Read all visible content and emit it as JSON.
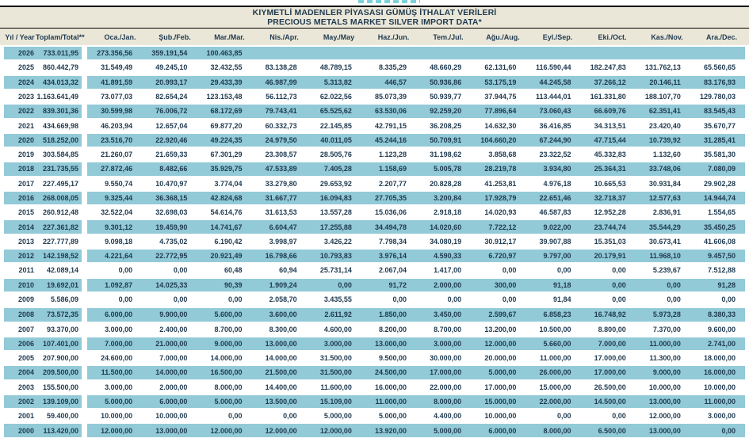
{
  "page": {
    "top_clipped_text": "",
    "title_line1": "KIYMETLİ MADENLER PİYASASI GÜMÜŞ İTHALAT VERİLERİ",
    "title_line2": "PRECIOUS METALS MARKET SILVER IMPORT DATA*"
  },
  "colors": {
    "row_stripe": "#92cad7",
    "header_bg": "#ebe7d8",
    "text": "#1f3a50",
    "accent_teal": "#4fc3cf"
  },
  "table": {
    "columns": [
      "Yıl / Year",
      "Toplam/Total**",
      "Oca./Jan.",
      "Şub./Feb.",
      "Mar./Mar.",
      "Nis./Apr.",
      "May./May",
      "Haz./Jun.",
      "Tem./Jul.",
      "Ağu./Aug.",
      "Eyl./Sep.",
      "Eki./Oct.",
      "Kas./Nov.",
      "Ara./Dec."
    ],
    "rows": [
      {
        "year": "2026",
        "total": "733.011,95",
        "months": [
          "273.356,56",
          "359.191,54",
          "100.463,85",
          "",
          "",
          "",
          "",
          "",
          "",
          "",
          "",
          ""
        ]
      },
      {
        "year": "2025",
        "total": "860.442,79",
        "months": [
          "31.549,49",
          "49.245,10",
          "32.432,55",
          "83.138,28",
          "48.789,15",
          "8.335,29",
          "48.660,29",
          "62.131,60",
          "116.590,44",
          "182.247,83",
          "131.762,13",
          "65.560,65"
        ]
      },
      {
        "year": "2024",
        "total": "434.013,32",
        "months": [
          "41.891,59",
          "20.993,17",
          "29.433,39",
          "46.987,99",
          "5.313,82",
          "446,57",
          "50.936,86",
          "53.175,19",
          "44.245,58",
          "37.266,12",
          "20.146,11",
          "83.176,93"
        ]
      },
      {
        "year": "2023",
        "total": "1.163.641,49",
        "months": [
          "73.077,03",
          "82.654,24",
          "123.153,48",
          "56.112,73",
          "62.022,56",
          "85.073,39",
          "50.939,77",
          "37.944,75",
          "113.444,01",
          "161.331,80",
          "188.107,70",
          "129.780,03"
        ]
      },
      {
        "year": "2022",
        "total": "839.301,36",
        "months": [
          "30.599,98",
          "76.006,72",
          "68.172,69",
          "79.743,41",
          "65.525,62",
          "63.530,06",
          "92.259,20",
          "77.896,64",
          "73.060,43",
          "66.609,76",
          "62.351,41",
          "83.545,43"
        ]
      },
      {
        "year": "2021",
        "total": "434.669,98",
        "months": [
          "46.203,94",
          "12.657,04",
          "69.877,20",
          "60.332,73",
          "22.145,85",
          "42.791,15",
          "36.208,25",
          "14.632,30",
          "36.416,85",
          "34.313,51",
          "23.420,40",
          "35.670,77"
        ]
      },
      {
        "year": "2020",
        "total": "518.252,00",
        "months": [
          "23.516,70",
          "22.920,46",
          "49.224,35",
          "24.979,50",
          "40.011,05",
          "45.244,16",
          "50.709,91",
          "104.660,20",
          "67.244,90",
          "47.715,44",
          "10.739,92",
          "31.285,41"
        ]
      },
      {
        "year": "2019",
        "total": "303.584,85",
        "months": [
          "21.260,07",
          "21.659,33",
          "67.301,29",
          "23.308,57",
          "28.505,76",
          "1.123,28",
          "31.198,62",
          "3.858,68",
          "23.322,52",
          "45.332,83",
          "1.132,60",
          "35.581,30"
        ]
      },
      {
        "year": "2018",
        "total": "231.735,55",
        "months": [
          "27.872,46",
          "8.482,66",
          "35.929,75",
          "47.533,89",
          "7.405,28",
          "1.158,69",
          "5.005,78",
          "28.219,78",
          "3.934,80",
          "25.364,31",
          "33.748,06",
          "7.080,09"
        ]
      },
      {
        "year": "2017",
        "total": "227.495,17",
        "months": [
          "9.550,74",
          "10.470,97",
          "3.774,04",
          "33.279,80",
          "29.653,92",
          "2.207,77",
          "20.828,28",
          "41.253,81",
          "4.976,18",
          "10.665,53",
          "30.931,84",
          "29.902,28"
        ]
      },
      {
        "year": "2016",
        "total": "268.008,05",
        "months": [
          "9.325,44",
          "36.368,15",
          "42.824,68",
          "31.667,77",
          "16.094,83",
          "27.705,35",
          "3.200,84",
          "17.928,79",
          "22.651,46",
          "32.718,37",
          "12.577,63",
          "14.944,74"
        ]
      },
      {
        "year": "2015",
        "total": "260.912,48",
        "months": [
          "32.522,04",
          "32.698,03",
          "54.614,76",
          "31.613,53",
          "13.557,28",
          "15.036,06",
          "2.918,18",
          "14.020,93",
          "46.587,83",
          "12.952,28",
          "2.836,91",
          "1.554,65"
        ]
      },
      {
        "year": "2014",
        "total": "227.361,82",
        "months": [
          "9.301,12",
          "19.459,90",
          "14.741,67",
          "6.604,47",
          "17.255,88",
          "34.494,78",
          "14.020,60",
          "7.722,12",
          "9.022,00",
          "23.744,74",
          "35.544,29",
          "35.450,25"
        ]
      },
      {
        "year": "2013",
        "total": "227.777,89",
        "months": [
          "9.098,18",
          "4.735,02",
          "6.190,42",
          "3.998,97",
          "3.426,22",
          "7.798,34",
          "34.080,19",
          "30.912,17",
          "39.907,88",
          "15.351,03",
          "30.673,41",
          "41.606,08"
        ]
      },
      {
        "year": "2012",
        "total": "142.198,52",
        "months": [
          "4.221,64",
          "22.772,95",
          "20.921,49",
          "16.798,66",
          "10.793,83",
          "3.976,14",
          "4.590,33",
          "6.720,97",
          "9.797,00",
          "20.179,91",
          "11.968,10",
          "9.457,50"
        ]
      },
      {
        "year": "2011",
        "total": "42.089,14",
        "months": [
          "0,00",
          "0,00",
          "60,48",
          "60,94",
          "25.731,14",
          "2.067,04",
          "1.417,00",
          "0,00",
          "0,00",
          "0,00",
          "5.239,67",
          "7.512,88"
        ]
      },
      {
        "year": "2010",
        "total": "19.692,01",
        "months": [
          "1.092,87",
          "14.025,33",
          "90,39",
          "1.909,24",
          "0,00",
          "91,72",
          "2.000,00",
          "300,00",
          "91,18",
          "0,00",
          "0,00",
          "91,28"
        ]
      },
      {
        "year": "2009",
        "total": "5.586,09",
        "months": [
          "0,00",
          "0,00",
          "0,00",
          "2.058,70",
          "3.435,55",
          "0,00",
          "0,00",
          "0,00",
          "91,84",
          "0,00",
          "0,00",
          "0,00"
        ]
      },
      {
        "year": "2008",
        "total": "73.572,35",
        "months": [
          "6.000,00",
          "9.900,00",
          "5.600,00",
          "3.600,00",
          "2.611,92",
          "1.850,00",
          "3.450,00",
          "2.599,67",
          "6.858,23",
          "16.748,92",
          "5.973,28",
          "8.380,33"
        ]
      },
      {
        "year": "2007",
        "total": "93.370,00",
        "months": [
          "3.000,00",
          "2.400,00",
          "8.700,00",
          "8.300,00",
          "4.600,00",
          "8.200,00",
          "8.700,00",
          "13.200,00",
          "10.500,00",
          "8.800,00",
          "7.370,00",
          "9.600,00"
        ]
      },
      {
        "year": "2006",
        "total": "107.401,00",
        "months": [
          "7.000,00",
          "21.000,00",
          "9.000,00",
          "13.000,00",
          "3.000,00",
          "13.000,00",
          "3.000,00",
          "12.000,00",
          "5.660,00",
          "7.000,00",
          "11.000,00",
          "2.741,00"
        ]
      },
      {
        "year": "2005",
        "total": "207.900,00",
        "months": [
          "24.600,00",
          "7.000,00",
          "14.000,00",
          "14.000,00",
          "31.500,00",
          "9.500,00",
          "30.000,00",
          "20.000,00",
          "11.000,00",
          "17.000,00",
          "11.300,00",
          "18.000,00"
        ]
      },
      {
        "year": "2004",
        "total": "209.500,00",
        "months": [
          "11.500,00",
          "14.000,00",
          "16.500,00",
          "21.500,00",
          "31.500,00",
          "24.500,00",
          "17.000,00",
          "5.000,00",
          "26.000,00",
          "17.000,00",
          "9.000,00",
          "16.000,00"
        ]
      },
      {
        "year": "2003",
        "total": "155.500,00",
        "months": [
          "3.000,00",
          "2.000,00",
          "8.000,00",
          "14.400,00",
          "11.600,00",
          "16.000,00",
          "22.000,00",
          "17.000,00",
          "15.000,00",
          "26.500,00",
          "10.000,00",
          "10.000,00"
        ]
      },
      {
        "year": "2002",
        "total": "139.109,00",
        "months": [
          "5.000,00",
          "6.000,00",
          "5.000,00",
          "13.500,00",
          "15.109,00",
          "11.000,00",
          "8.000,00",
          "15.000,00",
          "22.000,00",
          "14.500,00",
          "13.000,00",
          "11.000,00"
        ]
      },
      {
        "year": "2001",
        "total": "59.400,00",
        "months": [
          "10.000,00",
          "10.000,00",
          "0,00",
          "0,00",
          "5.000,00",
          "5.000,00",
          "4.400,00",
          "10.000,00",
          "0,00",
          "0,00",
          "12.000,00",
          "3.000,00"
        ]
      },
      {
        "year": "2000",
        "total": "113.420,00",
        "months": [
          "12.000,00",
          "13.000,00",
          "12.000,00",
          "12.000,00",
          "12.000,00",
          "13.920,00",
          "5.000,00",
          "6.000,00",
          "8.000,00",
          "6.500,00",
          "13.000,00",
          "0,00"
        ]
      }
    ]
  }
}
